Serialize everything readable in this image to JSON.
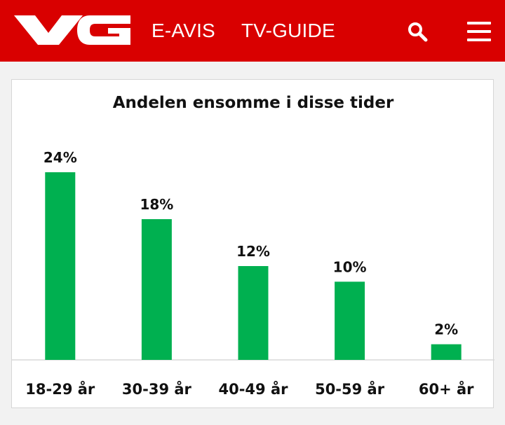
{
  "header": {
    "logo_text": "VG",
    "nav": [
      "E-AVIS",
      "TV-GUIDE"
    ],
    "search_icon": "search-icon",
    "menu_icon": "hamburger-menu-icon",
    "brand_color": "#d90000"
  },
  "chart_data": {
    "type": "bar",
    "title": "Andelen ensomme i disse tider",
    "categories": [
      "18-29 år",
      "30-39 år",
      "40-49 år",
      "50-59 år",
      "60+ år"
    ],
    "values": [
      24,
      18,
      12,
      10,
      2
    ],
    "data_labels": [
      "24%",
      "18%",
      "12%",
      "10%",
      "2%"
    ],
    "xlabel": "",
    "ylabel": "",
    "ylim": [
      0,
      24
    ],
    "grid": false,
    "legend": "none",
    "bar_color": "#00b050"
  }
}
